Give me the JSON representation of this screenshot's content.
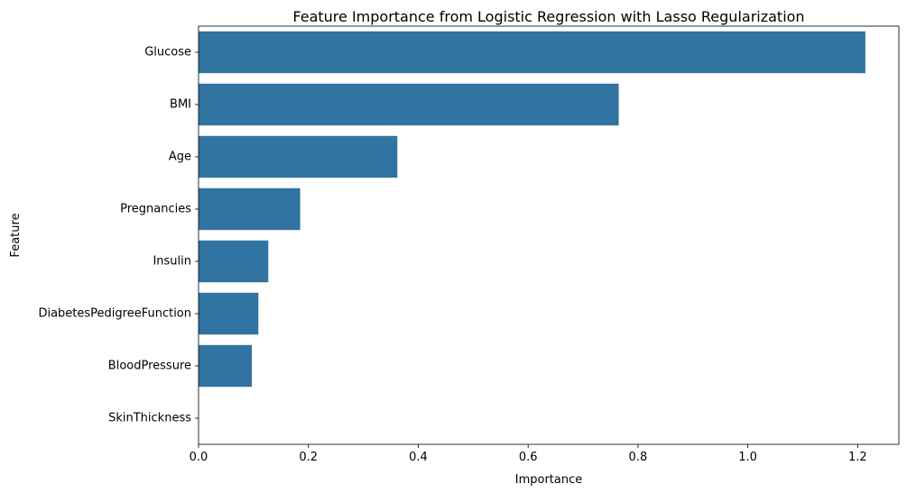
{
  "chart_data": {
    "type": "bar",
    "orientation": "horizontal",
    "title": "Feature Importance from Logistic Regression with Lasso Regularization",
    "xlabel": "Importance",
    "ylabel": "Feature",
    "categories": [
      "Glucose",
      "BMI",
      "Age",
      "Pregnancies",
      "Insulin",
      "DiabetesPedigreeFunction",
      "BloodPressure",
      "SkinThickness"
    ],
    "values": [
      1.214,
      0.765,
      0.362,
      0.185,
      0.127,
      0.109,
      0.097,
      0.0
    ],
    "xlim": [
      0,
      1.275
    ],
    "xticks": [
      "0.0",
      "0.2",
      "0.4",
      "0.6",
      "0.8",
      "1.0",
      "1.2"
    ],
    "xtick_values": [
      0.0,
      0.2,
      0.4,
      0.6,
      0.8,
      1.0,
      1.2
    ],
    "grid": false,
    "legend": "none",
    "bar_color": "#3274a1"
  }
}
